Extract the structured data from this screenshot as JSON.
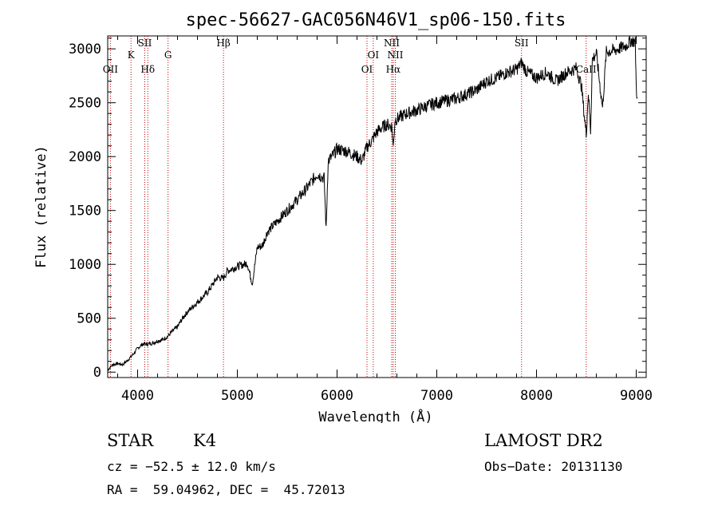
{
  "chart_data": {
    "type": "line",
    "title": "spec-56627-GAC056N46V1_sp06-150.fits",
    "xlabel": "Wavelength (Å)",
    "ylabel": "Flux (relative)",
    "xlim": [
      3700,
      9100
    ],
    "ylim": [
      -50,
      3120
    ],
    "xticks": [
      4000,
      5000,
      6000,
      7000,
      8000,
      9000
    ],
    "yticks": [
      0,
      500,
      1000,
      1500,
      2000,
      2500,
      3000
    ],
    "grid": false,
    "spectrum": {
      "x": [
        3700,
        3750,
        3800,
        3850,
        3900,
        3950,
        4000,
        4050,
        4100,
        4150,
        4200,
        4250,
        4300,
        4350,
        4400,
        4450,
        4500,
        4600,
        4700,
        4800,
        4860,
        4900,
        5000,
        5100,
        5150,
        5200,
        5250,
        5300,
        5400,
        5500,
        5600,
        5700,
        5800,
        5870,
        5890,
        5910,
        5950,
        6000,
        6100,
        6200,
        6250,
        6300,
        6350,
        6400,
        6450,
        6500,
        6550,
        6563,
        6580,
        6600,
        6700,
        6800,
        6900,
        7000,
        7100,
        7200,
        7300,
        7400,
        7500,
        7600,
        7700,
        7800,
        7850,
        7900,
        8000,
        8100,
        8200,
        8300,
        8400,
        8450,
        8498,
        8520,
        8542,
        8560,
        8600,
        8662,
        8700,
        8800,
        8900,
        8950,
        8990,
        9000,
        9010
      ],
      "y": [
        20,
        70,
        80,
        70,
        110,
        160,
        220,
        260,
        260,
        270,
        290,
        300,
        330,
        380,
        420,
        500,
        560,
        650,
        740,
        880,
        870,
        940,
        980,
        1010,
        820,
        1160,
        1170,
        1300,
        1400,
        1500,
        1600,
        1710,
        1840,
        1800,
        1320,
        1960,
        2000,
        2070,
        2050,
        2000,
        1960,
        2090,
        2150,
        2230,
        2270,
        2300,
        2280,
        2080,
        2340,
        2350,
        2400,
        2430,
        2470,
        2500,
        2520,
        2540,
        2580,
        2620,
        2700,
        2730,
        2780,
        2810,
        2870,
        2790,
        2730,
        2780,
        2700,
        2780,
        2820,
        2660,
        2200,
        2600,
        2240,
        2900,
        2960,
        2450,
        2970,
        2990,
        3030,
        3080,
        3060,
        2650,
        2550
      ]
    },
    "lines": [
      {
        "name": "OII",
        "wave": 3727
      },
      {
        "name": "K",
        "wave": 3934
      },
      {
        "name": "SII",
        "wave": 4072
      },
      {
        "name": "Hδ",
        "wave": 4102
      },
      {
        "name": "G",
        "wave": 4305
      },
      {
        "name": "Hβ",
        "wave": 4861
      },
      {
        "name": "OI",
        "wave": 6300
      },
      {
        "name": "OI",
        "wave": 6363
      },
      {
        "name": "NII",
        "wave": 6548
      },
      {
        "name": "Hα",
        "wave": 6563
      },
      {
        "name": "NII",
        "wave": 6584
      },
      {
        "name": "SII",
        "wave": 7850
      },
      {
        "name": "CaII",
        "wave": 8498
      }
    ],
    "line_color": "#c00000",
    "spectrum_color": "#000000"
  },
  "info": {
    "class": "STAR",
    "subclass": "K4",
    "survey": "LAMOST DR2",
    "cz": "cz = −52.5 ± 12.0 km/s",
    "obs_date": "Obs−Date: 20131130",
    "coords": "RA =  59.04962, DEC =  45.72013"
  }
}
